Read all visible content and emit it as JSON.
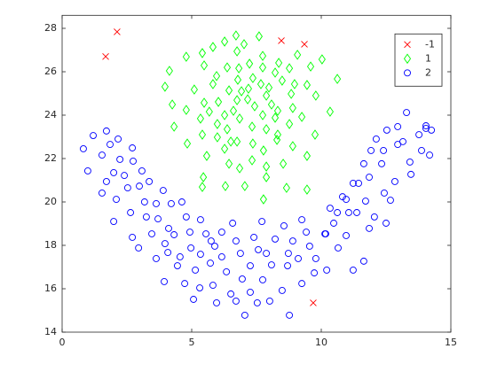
{
  "chart_data": {
    "type": "scatter",
    "xlim": [
      0,
      15
    ],
    "ylim": [
      14,
      28.6
    ],
    "xticks": [
      0,
      5,
      10,
      15
    ],
    "yticks": [
      14,
      16,
      18,
      20,
      22,
      24,
      26,
      28
    ],
    "legend": "northeast",
    "series": [
      {
        "name": "-1",
        "color": "#ff0000",
        "marker": "x",
        "x": [
          2.12,
          1.68,
          8.46,
          9.35,
          9.69
        ],
        "y": [
          27.84,
          26.7,
          27.43,
          27.27,
          15.35
        ]
      },
      {
        "name": "1",
        "color": "#00ff00",
        "marker": "diamond",
        "x": [
          6.71,
          7.6,
          6.27,
          7.02,
          5.82,
          6.75,
          7.74,
          8.36,
          9.08,
          10.03,
          9.59,
          10.62,
          5.41,
          4.79,
          4.14,
          5.48,
          6.37,
          6.82,
          7.23,
          7.74,
          8.22,
          8.77,
          8.97,
          5.1,
          5.96,
          6.78,
          7.36,
          7.67,
          7.98,
          8.49,
          9.45,
          3.97,
          4.25,
          4.79,
          5.48,
          6.03,
          6.44,
          6.92,
          7.16,
          7.88,
          8.08,
          8.84,
          9.79,
          10.34,
          4.32,
          5.34,
          5.68,
          6.27,
          6.61,
          7.43,
          7.74,
          8.32,
          8.9,
          9.25,
          4.83,
          5.41,
          5.99,
          6.37,
          6.85,
          7.33,
          7.88,
          8.32,
          8.77,
          9.76,
          5.58,
          6.27,
          6.75,
          7.36,
          7.77,
          8.29,
          8.9,
          9.45,
          5.45,
          6.44,
          6.85,
          7.33,
          7.88,
          8.53,
          5.41,
          6.3,
          7.05,
          7.77,
          8.66,
          9.45,
          5.99,
          7.19,
          8.22,
          6.51,
          5.82,
          7.88,
          6.75
        ],
        "y": [
          27.67,
          27.63,
          27.39,
          27.27,
          27.14,
          26.94,
          26.73,
          26.41,
          26.78,
          26.57,
          26.24,
          25.67,
          26.86,
          26.69,
          26.04,
          26.29,
          26.2,
          26.16,
          26.37,
          26.2,
          25.96,
          26.16,
          25.43,
          25.18,
          25.8,
          25.63,
          25.71,
          25.43,
          25.27,
          25.59,
          25.39,
          25.31,
          24.49,
          24.24,
          24.57,
          24.61,
          25.14,
          25.1,
          24.73,
          24.9,
          24.49,
          24.98,
          24.9,
          24.16,
          23.47,
          23.84,
          24.16,
          24,
          24.2,
          24.41,
          24,
          24.2,
          24.33,
          23.92,
          22.69,
          23.1,
          22.98,
          23.35,
          23.84,
          23.47,
          23.35,
          23.1,
          23.59,
          23.1,
          22.12,
          22.45,
          22.78,
          22.69,
          22.37,
          22.86,
          22.57,
          22.12,
          21.14,
          21.76,
          21.55,
          21.92,
          21.63,
          21.76,
          20.69,
          20.73,
          20.73,
          20.12,
          20.65,
          20.57,
          23.59,
          25.22,
          23.88,
          22.78,
          25.43,
          21.14,
          24.69
        ]
      },
      {
        "name": "2",
        "color": "#0000ff",
        "marker": "circle",
        "x": [
          0.82,
          1.2,
          1.71,
          2.16,
          2.71,
          0.99,
          1.54,
          1.85,
          2.23,
          2.74,
          1.54,
          1.99,
          1.71,
          2.4,
          3.08,
          2.09,
          2.53,
          2.98,
          3.36,
          3.9,
          1.99,
          2.64,
          3.18,
          3.63,
          4.21,
          2.71,
          3.25,
          3.7,
          4.11,
          4.62,
          4.79,
          2.95,
          3.46,
          3.97,
          4.32,
          4.93,
          3.94,
          3.63,
          4.08,
          4.55,
          4.97,
          5.34,
          5.55,
          4.45,
          4.73,
          5.14,
          5.34,
          5.75,
          6.16,
          5.07,
          5.31,
          5.72,
          5.82,
          5.96,
          6.16,
          6.34,
          5.89,
          6.58,
          6.71,
          6.88,
          6.51,
          6.95,
          6.71,
          7.26,
          7.4,
          7.71,
          7.57,
          7.05,
          7.26,
          7.74,
          7.88,
          8.08,
          7.53,
          8.01,
          8.22,
          8.49,
          8.7,
          8.56,
          8.73,
          8.9,
          9.25,
          9.42,
          9.55,
          9.79,
          8.77,
          9.25,
          10.21,
          9.73,
          9.11,
          10.14,
          10.48,
          10.34,
          10.65,
          10.96,
          11.06,
          10.82,
          11.23,
          11.44,
          11.64,
          11.71,
          11.85,
          11.85,
          12.05,
          12.33,
          12.5,
          12.67,
          12.43,
          12.84,
          13.15,
          13.29,
          12.95,
          13.46,
          13.42,
          13.77,
          13.87,
          14.04,
          14.18,
          14.25,
          14.04,
          12.12,
          12.53,
          12.95,
          12.4,
          11.92,
          11.64,
          11.23,
          10.96,
          11.37,
          10.62,
          10.17
        ],
        "y": [
          22.45,
          23.06,
          23.27,
          22.9,
          22.49,
          21.43,
          22.16,
          22.65,
          21.96,
          21.88,
          20.41,
          21.35,
          20.94,
          21.22,
          21.43,
          20.12,
          20.65,
          20.73,
          20.94,
          20.53,
          19.1,
          19.51,
          20,
          19.92,
          19.92,
          18.37,
          19.31,
          19.22,
          18.78,
          20,
          19.31,
          17.88,
          18.53,
          18.08,
          18.49,
          18.61,
          16.33,
          17.39,
          17.67,
          17.47,
          17.88,
          19.18,
          18.53,
          17.06,
          16.24,
          16.86,
          17.59,
          18.2,
          18.61,
          15.51,
          16.04,
          17.18,
          16.16,
          15.35,
          17.47,
          16.78,
          17.96,
          19.02,
          18.2,
          17.63,
          15.76,
          16.45,
          15.43,
          17.06,
          18.37,
          19.1,
          17.8,
          14.78,
          15.84,
          16.41,
          17.63,
          17.1,
          15.35,
          15.43,
          18.29,
          15.92,
          17.06,
          18.9,
          17.63,
          18.2,
          19.18,
          18.61,
          17.96,
          17.39,
          14.78,
          16.24,
          16.86,
          16.73,
          17.39,
          18.53,
          19.02,
          19.71,
          17.88,
          18.45,
          19.51,
          20.24,
          16.86,
          20.86,
          17.27,
          20.04,
          18.78,
          21.14,
          19.31,
          21.76,
          19.02,
          20.08,
          20.41,
          20.94,
          22.78,
          24.12,
          23.47,
          21.27,
          21.84,
          23.1,
          22.37,
          23.39,
          22.16,
          23.31,
          23.51,
          22.9,
          23.31,
          22.65,
          22.37,
          22.37,
          21.76,
          20.86,
          20.12,
          19.51,
          19.51,
          18.53
        ]
      }
    ]
  }
}
